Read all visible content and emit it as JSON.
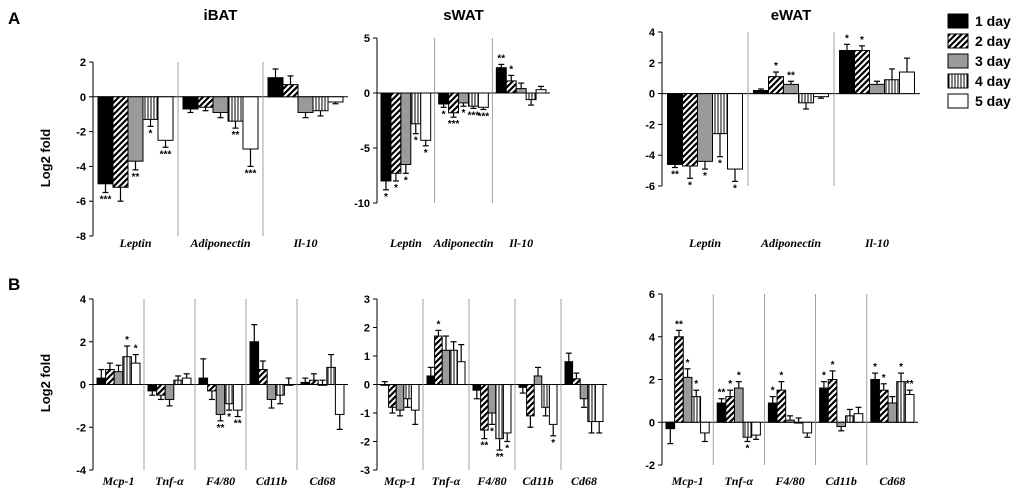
{
  "figure": {
    "panel_labels": [
      "A",
      "B"
    ],
    "legend": {
      "entries": [
        "1 day",
        "2 day",
        "3 day",
        "4 day",
        "5 day"
      ],
      "patterns": [
        "solid-black",
        "diagonal-hatch",
        "solid-gray",
        "vertical-lines",
        "white"
      ]
    },
    "colors": {
      "black": "#000000",
      "gray": "#9a9a9a",
      "white": "#ffffff",
      "axis": "#000000",
      "separator": "#888888"
    }
  },
  "chart_data": [
    {
      "id": "A-iBAT",
      "type": "bar",
      "title": "iBAT",
      "ylabel": "Log2 fold",
      "ylim": [
        -8,
        2
      ],
      "yticks": [
        2,
        0,
        -2,
        -4,
        -6,
        -8
      ],
      "categories": [
        "Leptin",
        "Adiponectin",
        "Il-10"
      ],
      "series": [
        {
          "name": "1 day",
          "values": [
            -5.0,
            -0.7,
            1.1
          ],
          "errors": [
            0.5,
            0.2,
            0.5
          ],
          "sig": [
            "***",
            "",
            ""
          ]
        },
        {
          "name": "2 day",
          "values": [
            -5.2,
            -0.6,
            0.7
          ],
          "errors": [
            0.8,
            0.2,
            0.5
          ],
          "sig": [
            "",
            "",
            ""
          ]
        },
        {
          "name": "3 day",
          "values": [
            -3.7,
            -0.9,
            -0.9
          ],
          "errors": [
            0.5,
            0.3,
            0.3
          ],
          "sig": [
            "**",
            "",
            ""
          ]
        },
        {
          "name": "4 day",
          "values": [
            -1.3,
            -1.4,
            -0.8
          ],
          "errors": [
            0.4,
            0.4,
            0.3
          ],
          "sig": [
            "*",
            "**",
            ""
          ]
        },
        {
          "name": "5 day",
          "values": [
            -2.5,
            -3.0,
            -0.3
          ],
          "errors": [
            0.4,
            1.0,
            0.1
          ],
          "sig": [
            "***",
            "***",
            ""
          ]
        }
      ]
    },
    {
      "id": "A-sWAT",
      "type": "bar",
      "title": "sWAT",
      "ylabel": "",
      "ylim": [
        -10,
        5
      ],
      "yticks": [
        5,
        0,
        -5,
        -10
      ],
      "categories": [
        "Leptin",
        "Adiponectin",
        "Il-10"
      ],
      "series": [
        {
          "name": "1 day",
          "values": [
            -8.0,
            -1.0,
            2.3
          ],
          "errors": [
            0.8,
            0.3,
            0.3
          ],
          "sig": [
            "*",
            "*",
            "**"
          ]
        },
        {
          "name": "2 day",
          "values": [
            -7.3,
            -1.8,
            1.1
          ],
          "errors": [
            0.7,
            0.4,
            0.5
          ],
          "sig": [
            "*",
            "***",
            "*"
          ]
        },
        {
          "name": "3 day",
          "values": [
            -6.5,
            -0.9,
            0.4
          ],
          "errors": [
            0.8,
            0.3,
            0.5
          ],
          "sig": [
            "*",
            "*",
            ""
          ]
        },
        {
          "name": "4 day",
          "values": [
            -2.8,
            -1.2,
            -0.6
          ],
          "errors": [
            0.9,
            0.2,
            0.5
          ],
          "sig": [
            "*",
            "***",
            ""
          ]
        },
        {
          "name": "5 day",
          "values": [
            -4.3,
            -1.3,
            0.3
          ],
          "errors": [
            0.5,
            0.2,
            0.3
          ],
          "sig": [
            "*",
            "***",
            ""
          ]
        }
      ]
    },
    {
      "id": "A-eWAT",
      "type": "bar",
      "title": "eWAT",
      "ylabel": "",
      "ylim": [
        -6,
        4
      ],
      "yticks": [
        4,
        2,
        0,
        -2,
        -4,
        -6
      ],
      "categories": [
        "Leptin",
        "Adiponectin",
        "Il-10"
      ],
      "series": [
        {
          "name": "1 day",
          "values": [
            -4.6,
            0.2,
            2.8
          ],
          "errors": [
            0.2,
            0.1,
            0.4
          ],
          "sig": [
            "**",
            "",
            "*"
          ]
        },
        {
          "name": "2 day",
          "values": [
            -4.7,
            1.1,
            2.8
          ],
          "errors": [
            0.8,
            0.3,
            0.3
          ],
          "sig": [
            "*",
            "*",
            "*"
          ]
        },
        {
          "name": "3 day",
          "values": [
            -4.4,
            0.6,
            0.6
          ],
          "errors": [
            0.5,
            0.2,
            0.2
          ],
          "sig": [
            "*",
            "**",
            ""
          ]
        },
        {
          "name": "4 day",
          "values": [
            -2.6,
            -0.6,
            0.9
          ],
          "errors": [
            1.5,
            0.4,
            0.7
          ],
          "sig": [
            "*",
            "",
            ""
          ]
        },
        {
          "name": "5 day",
          "values": [
            -4.9,
            -0.2,
            1.4
          ],
          "errors": [
            0.8,
            0.1,
            0.9
          ],
          "sig": [
            "*",
            "",
            ""
          ]
        }
      ]
    },
    {
      "id": "B-iBAT",
      "type": "bar",
      "title": "",
      "ylabel": "Log2 fold",
      "ylim": [
        -4,
        4
      ],
      "yticks": [
        4,
        2,
        0,
        -2,
        -4
      ],
      "categories": [
        "Mcp-1",
        "Tnf-α",
        "F4/80",
        "Cd11b",
        "Cd68"
      ],
      "series": [
        {
          "name": "1 day",
          "values": [
            0.3,
            -0.3,
            0.3,
            2.0,
            0.1
          ],
          "errors": [
            0.4,
            0.2,
            0.9,
            0.8,
            0.2
          ],
          "sig": [
            "",
            "",
            "",
            "",
            ""
          ]
        },
        {
          "name": "2 day",
          "values": [
            0.7,
            -0.5,
            -0.3,
            0.7,
            0.2
          ],
          "errors": [
            0.3,
            0.2,
            0.4,
            0.4,
            0.3
          ],
          "sig": [
            "",
            "",
            "",
            "",
            ""
          ]
        },
        {
          "name": "3 day",
          "values": [
            0.6,
            -0.7,
            -1.4,
            -0.7,
            0.0
          ],
          "errors": [
            0.3,
            0.3,
            0.3,
            0.4,
            0.2
          ],
          "sig": [
            "",
            "",
            "**",
            "",
            ""
          ]
        },
        {
          "name": "4 day",
          "values": [
            1.3,
            0.2,
            -0.9,
            -0.5,
            0.8
          ],
          "errors": [
            0.5,
            0.2,
            0.3,
            0.4,
            0.6
          ],
          "sig": [
            "*",
            "",
            "*",
            "",
            ""
          ]
        },
        {
          "name": "5 day",
          "values": [
            1.0,
            0.3,
            -1.2,
            0.0,
            -1.4
          ],
          "errors": [
            0.4,
            0.2,
            0.3,
            0.3,
            0.7
          ],
          "sig": [
            "*",
            "",
            "**",
            "",
            ""
          ]
        }
      ]
    },
    {
      "id": "B-sWAT",
      "type": "bar",
      "title": "",
      "ylabel": "",
      "ylim": [
        -3,
        3
      ],
      "yticks": [
        3,
        2,
        1,
        0,
        -1,
        -2,
        -3
      ],
      "categories": [
        "Mcp-1",
        "Tnf-α",
        "F4/80",
        "Cd11b",
        "Cd68"
      ],
      "series": [
        {
          "name": "1 day",
          "values": [
            0.0,
            0.3,
            -0.2,
            -0.1,
            0.8
          ],
          "errors": [
            0.1,
            0.3,
            0.3,
            0.2,
            0.3
          ],
          "sig": [
            "",
            "",
            "",
            "",
            ""
          ]
        },
        {
          "name": "2 day",
          "values": [
            -0.8,
            1.7,
            -1.6,
            -1.1,
            0.2
          ],
          "errors": [
            0.2,
            0.2,
            0.3,
            0.4,
            0.2
          ],
          "sig": [
            "",
            "*",
            "**",
            "",
            ""
          ]
        },
        {
          "name": "3 day",
          "values": [
            -0.9,
            1.2,
            -1.0,
            0.3,
            -0.5
          ],
          "errors": [
            0.2,
            0.5,
            0.4,
            0.3,
            0.3
          ],
          "sig": [
            "",
            "",
            "*",
            "",
            ""
          ]
        },
        {
          "name": "4 day",
          "values": [
            -0.5,
            1.2,
            -1.9,
            -0.8,
            -1.3
          ],
          "errors": [
            0.3,
            0.3,
            0.4,
            0.3,
            0.4
          ],
          "sig": [
            "",
            "",
            "**",
            "",
            ""
          ]
        },
        {
          "name": "5 day",
          "values": [
            -0.9,
            0.8,
            -1.7,
            -1.4,
            -1.3
          ],
          "errors": [
            0.5,
            0.6,
            0.3,
            0.4,
            0.4
          ],
          "sig": [
            "",
            "",
            "*",
            "*",
            ""
          ]
        }
      ]
    },
    {
      "id": "B-eWAT",
      "type": "bar",
      "title": "",
      "ylabel": "",
      "ylim": [
        -2,
        6
      ],
      "yticks": [
        6,
        4,
        2,
        0,
        -2
      ],
      "categories": [
        "Mcp-1",
        "Tnf-α",
        "F4/80",
        "Cd11b",
        "Cd68"
      ],
      "series": [
        {
          "name": "1 day",
          "values": [
            -0.3,
            0.9,
            0.9,
            1.6,
            2.0
          ],
          "errors": [
            0.7,
            0.2,
            0.3,
            0.3,
            0.3
          ],
          "sig": [
            "",
            "**",
            "*",
            "*",
            "*"
          ]
        },
        {
          "name": "2 day",
          "values": [
            4.0,
            1.2,
            1.5,
            2.0,
            1.5
          ],
          "errors": [
            0.3,
            0.3,
            0.4,
            0.4,
            0.3
          ],
          "sig": [
            "**",
            "*",
            "*",
            "*",
            "*"
          ]
        },
        {
          "name": "3 day",
          "values": [
            2.1,
            1.6,
            0.1,
            -0.2,
            0.9
          ],
          "errors": [
            0.4,
            0.3,
            0.2,
            0.2,
            0.3
          ],
          "sig": [
            "*",
            "*",
            "",
            "",
            ""
          ]
        },
        {
          "name": "4 day",
          "values": [
            1.2,
            -0.7,
            0.0,
            0.3,
            1.9
          ],
          "errors": [
            0.3,
            0.2,
            0.2,
            0.3,
            0.4
          ],
          "sig": [
            "*",
            "*",
            "",
            "",
            "*"
          ]
        },
        {
          "name": "5 day",
          "values": [
            -0.5,
            -0.6,
            -0.5,
            0.4,
            1.3
          ],
          "errors": [
            0.4,
            0.2,
            0.2,
            0.3,
            0.2
          ],
          "sig": [
            "",
            "",
            "",
            "",
            "**"
          ]
        }
      ]
    }
  ]
}
